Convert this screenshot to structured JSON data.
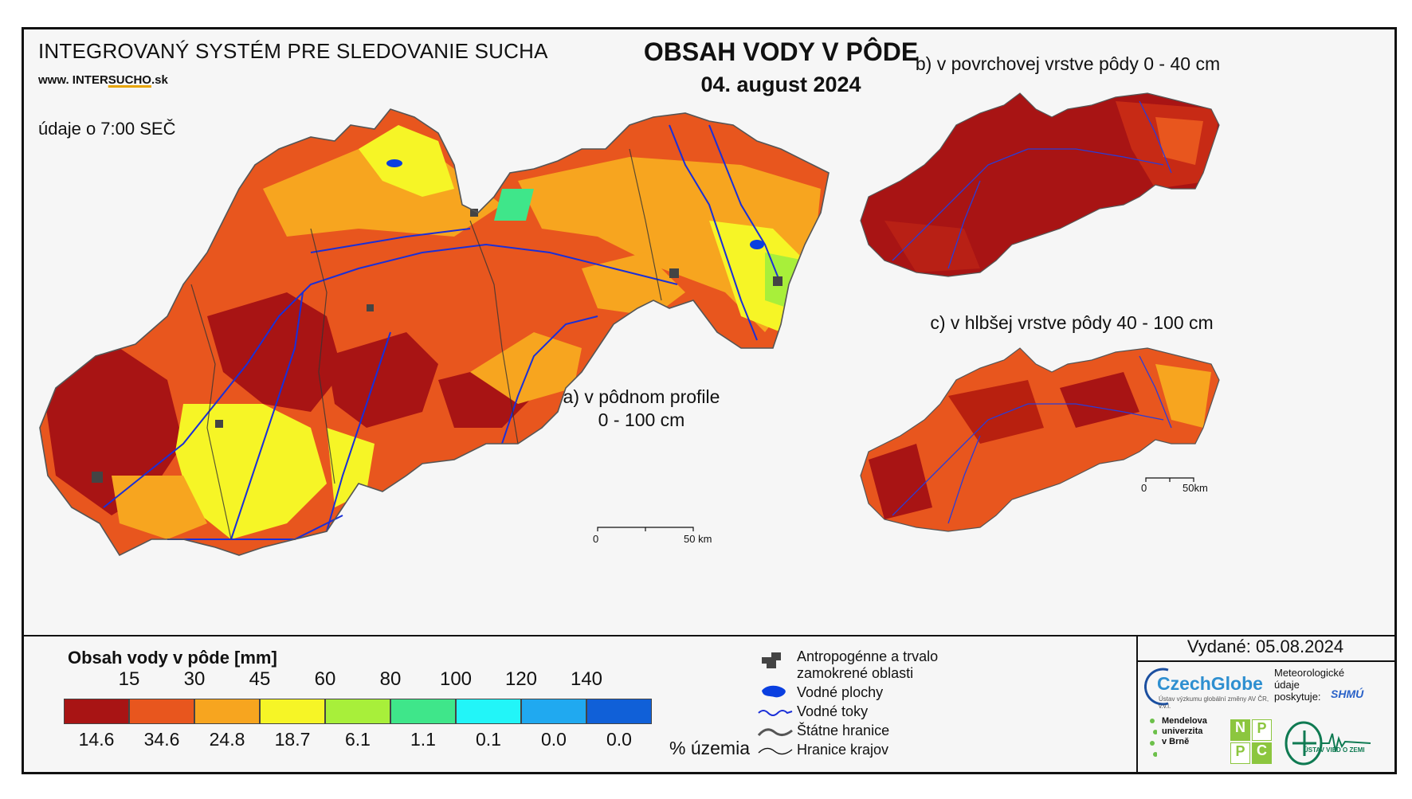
{
  "header": {
    "system_title": "INTEGROVANÝ SYSTÉM PRE SLEDOVANIE SUCHA",
    "website_prefix": "www. INTER",
    "website_accent": "SUCHO",
    "website_suffix": ".sk",
    "observation_time": "údaje o 7:00 SEČ",
    "main_title": "OBSAH VODY V PÔDE",
    "date": "04. august 2024"
  },
  "maps": {
    "a_caption_line1": "a) v pôdnom profile",
    "a_caption_line2": "0 - 100 cm",
    "b_caption": "b) v povrchovej vrstve pôdy 0 - 40 cm",
    "c_caption": "c) v hlbšej vrstve pôdy 40 - 100 cm",
    "scale_a": {
      "start": "0",
      "end": "50 km"
    },
    "scale_c": {
      "start": "0",
      "end": "50km"
    }
  },
  "legend": {
    "title": "Obsah vody v pôde  [mm]",
    "thresholds": [
      "15",
      "30",
      "45",
      "60",
      "80",
      "100",
      "120",
      "140"
    ],
    "classes": [
      {
        "color": "#a81414",
        "percent": "14.6"
      },
      {
        "color": "#e8561e",
        "percent": "34.6"
      },
      {
        "color": "#f7a51f",
        "percent": "24.8"
      },
      {
        "color": "#f6f526",
        "percent": "18.7"
      },
      {
        "color": "#a8ef3a",
        "percent": "6.1"
      },
      {
        "color": "#3fe68a",
        "percent": "1.1"
      },
      {
        "color": "#22f5f8",
        "percent": "0.1"
      },
      {
        "color": "#20a9f0",
        "percent": "0.0"
      },
      {
        "color": "#1060d8",
        "percent": "0.0"
      }
    ],
    "percent_label": "% územia"
  },
  "symbols": [
    {
      "icon": "anthropogenic-area-icon",
      "label_line1": "Antropogénne a trvalo",
      "label_line2": "zamokrené oblasti"
    },
    {
      "icon": "water-body-icon",
      "label_line1": "Vodné plochy"
    },
    {
      "icon": "river-icon",
      "label_line1": "Vodné toky"
    },
    {
      "icon": "state-border-icon",
      "label_line1": "Štátne hranice"
    },
    {
      "icon": "region-border-icon",
      "label_line1": "Hranice krajov"
    }
  ],
  "footer": {
    "issued": "Vydané: 05.08.2024",
    "czechglobe": "CzechGlobe",
    "czechglobe_sub": "Ústav výzkumu globální změny AV ČR, v.v.i.",
    "meteo_line1": "Meteorologické",
    "meteo_line2": "údaje",
    "meteo_line3": "poskytuje:",
    "shmu": "SHMÚ",
    "mendel_line1": "Mendelova",
    "mendel_line2": "univerzita",
    "mendel_line3": "v Brně",
    "nppc": [
      "N",
      "P",
      "P",
      "C"
    ],
    "uvz": "ÚSTAV VIED O ZEMI"
  },
  "colors": {
    "dark_red": "#a81414",
    "orange_red": "#e8561e",
    "orange": "#f7a51f",
    "yellow": "#f6f526",
    "river": "#1a2fd8",
    "anthropogenic": "#444444"
  }
}
